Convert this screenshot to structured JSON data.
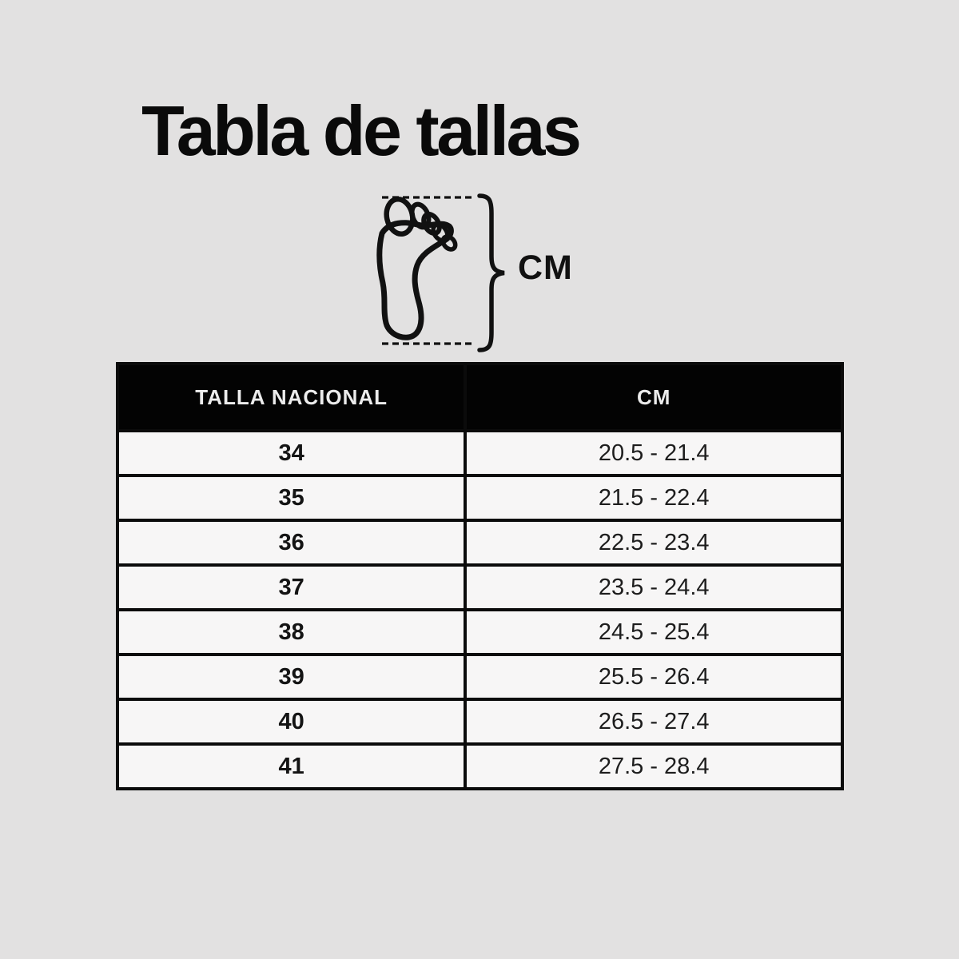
{
  "title": "Tabla de tallas",
  "diagram": {
    "unit_label": "CM",
    "foot_icon": "footprint-outline-icon",
    "brace_icon": "curly-brace-icon",
    "measure_lines": "dashed-measurement-lines"
  },
  "table": {
    "headers": [
      "TALLA NACIONAL",
      "CM"
    ],
    "rows": [
      {
        "size": "34",
        "cm": "20.5 - 21.4"
      },
      {
        "size": "35",
        "cm": "21.5 - 22.4"
      },
      {
        "size": "36",
        "cm": "22.5 - 23.4"
      },
      {
        "size": "37",
        "cm": "23.5 - 24.4"
      },
      {
        "size": "38",
        "cm": "24.5 - 25.4"
      },
      {
        "size": "39",
        "cm": "25.5 - 26.4"
      },
      {
        "size": "40",
        "cm": "26.5 - 27.4"
      },
      {
        "size": "41",
        "cm": "27.5 - 28.4"
      }
    ]
  },
  "chart_data": {
    "type": "table",
    "title": "Tabla de tallas",
    "columns": [
      "TALLA NACIONAL",
      "CM"
    ],
    "rows": [
      [
        "34",
        "20.5 - 21.4"
      ],
      [
        "35",
        "21.5 - 22.4"
      ],
      [
        "36",
        "22.5 - 23.4"
      ],
      [
        "37",
        "23.5 - 24.4"
      ],
      [
        "38",
        "24.5 - 25.4"
      ],
      [
        "39",
        "25.5 - 26.4"
      ],
      [
        "40",
        "26.5 - 27.4"
      ],
      [
        "41",
        "27.5 - 28.4"
      ]
    ]
  },
  "colors": {
    "background": "#e2e1e1",
    "header_bg": "#030303",
    "header_text": "#ececec",
    "cell_bg": "#f7f6f6",
    "border": "#0b0b0b",
    "ink": "#111111"
  }
}
